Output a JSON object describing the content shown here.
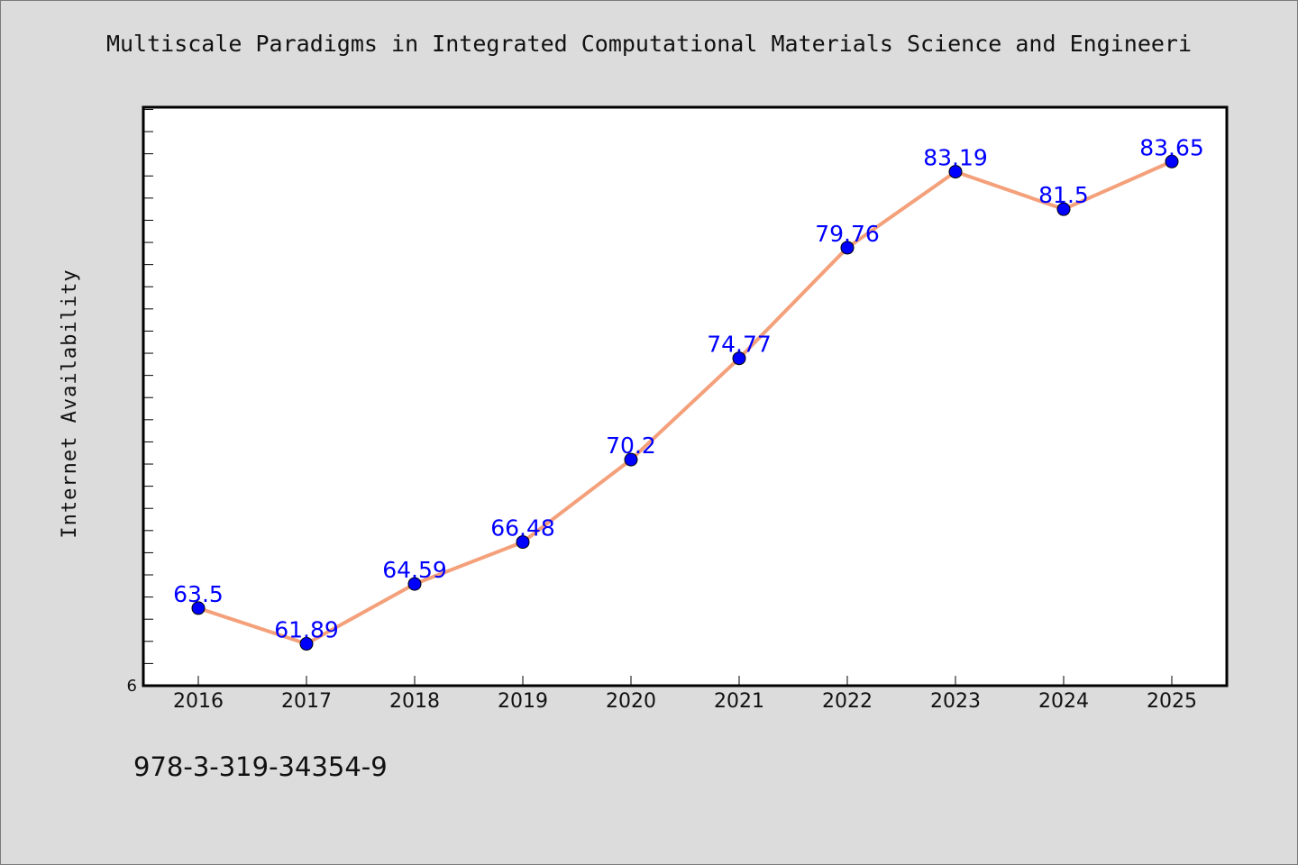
{
  "page": {
    "footer_text": "978-3-319-34354-9"
  },
  "chart_data": {
    "type": "line",
    "title": "Multiscale Paradigms in Integrated Computational Materials Science and Engineeri",
    "xlabel": "",
    "ylabel": "Internet Availability",
    "categories": [
      "2016",
      "2017",
      "2018",
      "2019",
      "2020",
      "2021",
      "2022",
      "2023",
      "2024",
      "2025"
    ],
    "series": [
      {
        "values": [
          63.5,
          61.89,
          64.59,
          66.48,
          70.2,
          74.77,
          79.76,
          83.19,
          81.5,
          83.65
        ],
        "labels": [
          "63.5",
          "61.89",
          "64.59",
          "66.48",
          "70.2",
          "74.77",
          "79.76",
          "83.19",
          "81.5",
          "83.65"
        ]
      }
    ],
    "ylim": [
      60,
      86.1
    ],
    "y_tick_labels": [
      "6"
    ],
    "y_minor_tick_step": 1,
    "grid": false,
    "line_color": "#f4a07a",
    "marker_color": "#0000ff",
    "label_color": "#0000ff"
  }
}
